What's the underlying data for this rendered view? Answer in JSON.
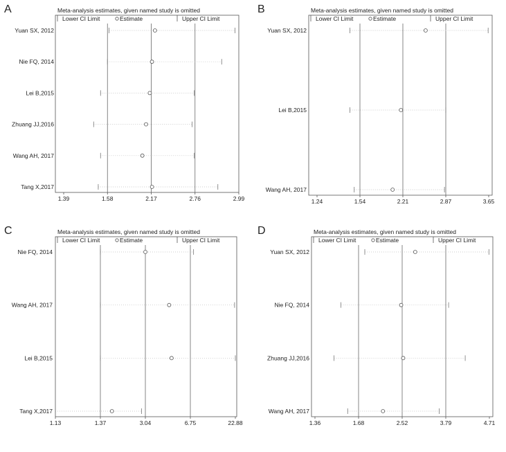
{
  "chart_data": [
    {
      "panel": "A",
      "type": "scatter",
      "title": "Meta-analysis estimates, given named study is omitted",
      "legend": [
        "Lower CI Limit",
        "Estimate",
        "Upper CI Limit"
      ],
      "xlim": [
        1.39,
        2.99
      ],
      "ticks": [
        "1.39",
        "1.58",
        "2.17",
        "2.76",
        "2.99"
      ],
      "tick_values": [
        1.39,
        1.58,
        2.17,
        2.76,
        2.99
      ],
      "reference_lines": [
        1.58,
        2.17,
        2.76
      ],
      "studies": [
        {
          "label": "Yuan SX, 2012",
          "lower": 1.6,
          "estimate": 2.22,
          "upper": 2.97
        },
        {
          "label": "Nie FQ, 2014",
          "lower": 1.58,
          "estimate": 2.18,
          "upper": 2.9
        },
        {
          "label": "Lei B,2015",
          "lower": 1.55,
          "estimate": 2.15,
          "upper": 2.75
        },
        {
          "label": "Zhuang JJ,2016",
          "lower": 1.52,
          "estimate": 2.1,
          "upper": 2.72
        },
        {
          "label": "Wang AH, 2017",
          "lower": 1.55,
          "estimate": 2.05,
          "upper": 2.75
        },
        {
          "label": "Tang X,2017",
          "lower": 1.54,
          "estimate": 2.18,
          "upper": 2.88
        }
      ]
    },
    {
      "panel": "B",
      "type": "scatter",
      "title": "Meta-analysis estimates, given named study is omitted",
      "legend": [
        "Lower CI Limit",
        "Estimate",
        "Upper CI Limit"
      ],
      "xlim": [
        1.24,
        3.65
      ],
      "ticks": [
        "1.24",
        "1.54",
        "2.21",
        "2.87",
        "3.65"
      ],
      "tick_values": [
        1.24,
        1.54,
        2.21,
        2.87,
        3.65
      ],
      "reference_lines": [
        1.54,
        2.21,
        2.87
      ],
      "studies": [
        {
          "label": "Yuan SX, 2012",
          "lower": 1.47,
          "estimate": 2.56,
          "upper": 3.64
        },
        {
          "label": "Lei B,2015",
          "lower": 1.47,
          "estimate": 2.18,
          "upper": 2.87
        },
        {
          "label": "Wang AH, 2017",
          "lower": 1.5,
          "estimate": 2.05,
          "upper": 2.85
        }
      ]
    },
    {
      "panel": "C",
      "type": "scatter",
      "title": "Meta-analysis estimates, given named study is omitted",
      "legend": [
        "Lower CI Limit",
        "Estimate",
        "Upper CI Limit"
      ],
      "xlim": [
        1.13,
        22.88
      ],
      "ticks": [
        "1.13",
        "1.37",
        "3.04",
        "6.75",
        "22.88"
      ],
      "tick_values": [
        1.13,
        1.37,
        3.04,
        6.75,
        22.88
      ],
      "reference_lines": [
        1.37,
        3.04,
        6.75
      ],
      "studies": [
        {
          "label": "Nie FQ, 2014",
          "lower": 1.37,
          "estimate": 3.04,
          "upper": 7.9
        },
        {
          "label": "Wang AH, 2017",
          "lower": 1.37,
          "estimate": 5.0,
          "upper": 22.6
        },
        {
          "label": "Lei B,2015",
          "lower": 1.37,
          "estimate": 5.2,
          "upper": 22.88
        },
        {
          "label": "Tang X,2017",
          "lower": 1.13,
          "estimate": 1.8,
          "upper": 2.9
        }
      ]
    },
    {
      "panel": "D",
      "type": "scatter",
      "title": "Meta-analysis estimates, given named study is omitted",
      "legend": [
        "Lower CI Limit",
        "Estimate",
        "Upper CI Limit"
      ],
      "xlim": [
        1.36,
        4.71
      ],
      "ticks": [
        "1.36",
        "1.68",
        "2.52",
        "3.79",
        "4.71"
      ],
      "tick_values": [
        1.36,
        1.68,
        2.52,
        3.79,
        4.71
      ],
      "reference_lines": [
        1.68,
        2.52,
        3.79
      ],
      "studies": [
        {
          "label": "Yuan SX, 2012",
          "lower": 1.8,
          "estimate": 2.9,
          "upper": 4.7
        },
        {
          "label": "Nie FQ, 2014",
          "lower": 1.55,
          "estimate": 2.5,
          "upper": 3.85
        },
        {
          "label": "Zhuang JJ,2016",
          "lower": 1.5,
          "estimate": 2.55,
          "upper": 4.2
        },
        {
          "label": "Wang AH, 2017",
          "lower": 1.6,
          "estimate": 2.15,
          "upper": 3.6
        }
      ]
    }
  ]
}
